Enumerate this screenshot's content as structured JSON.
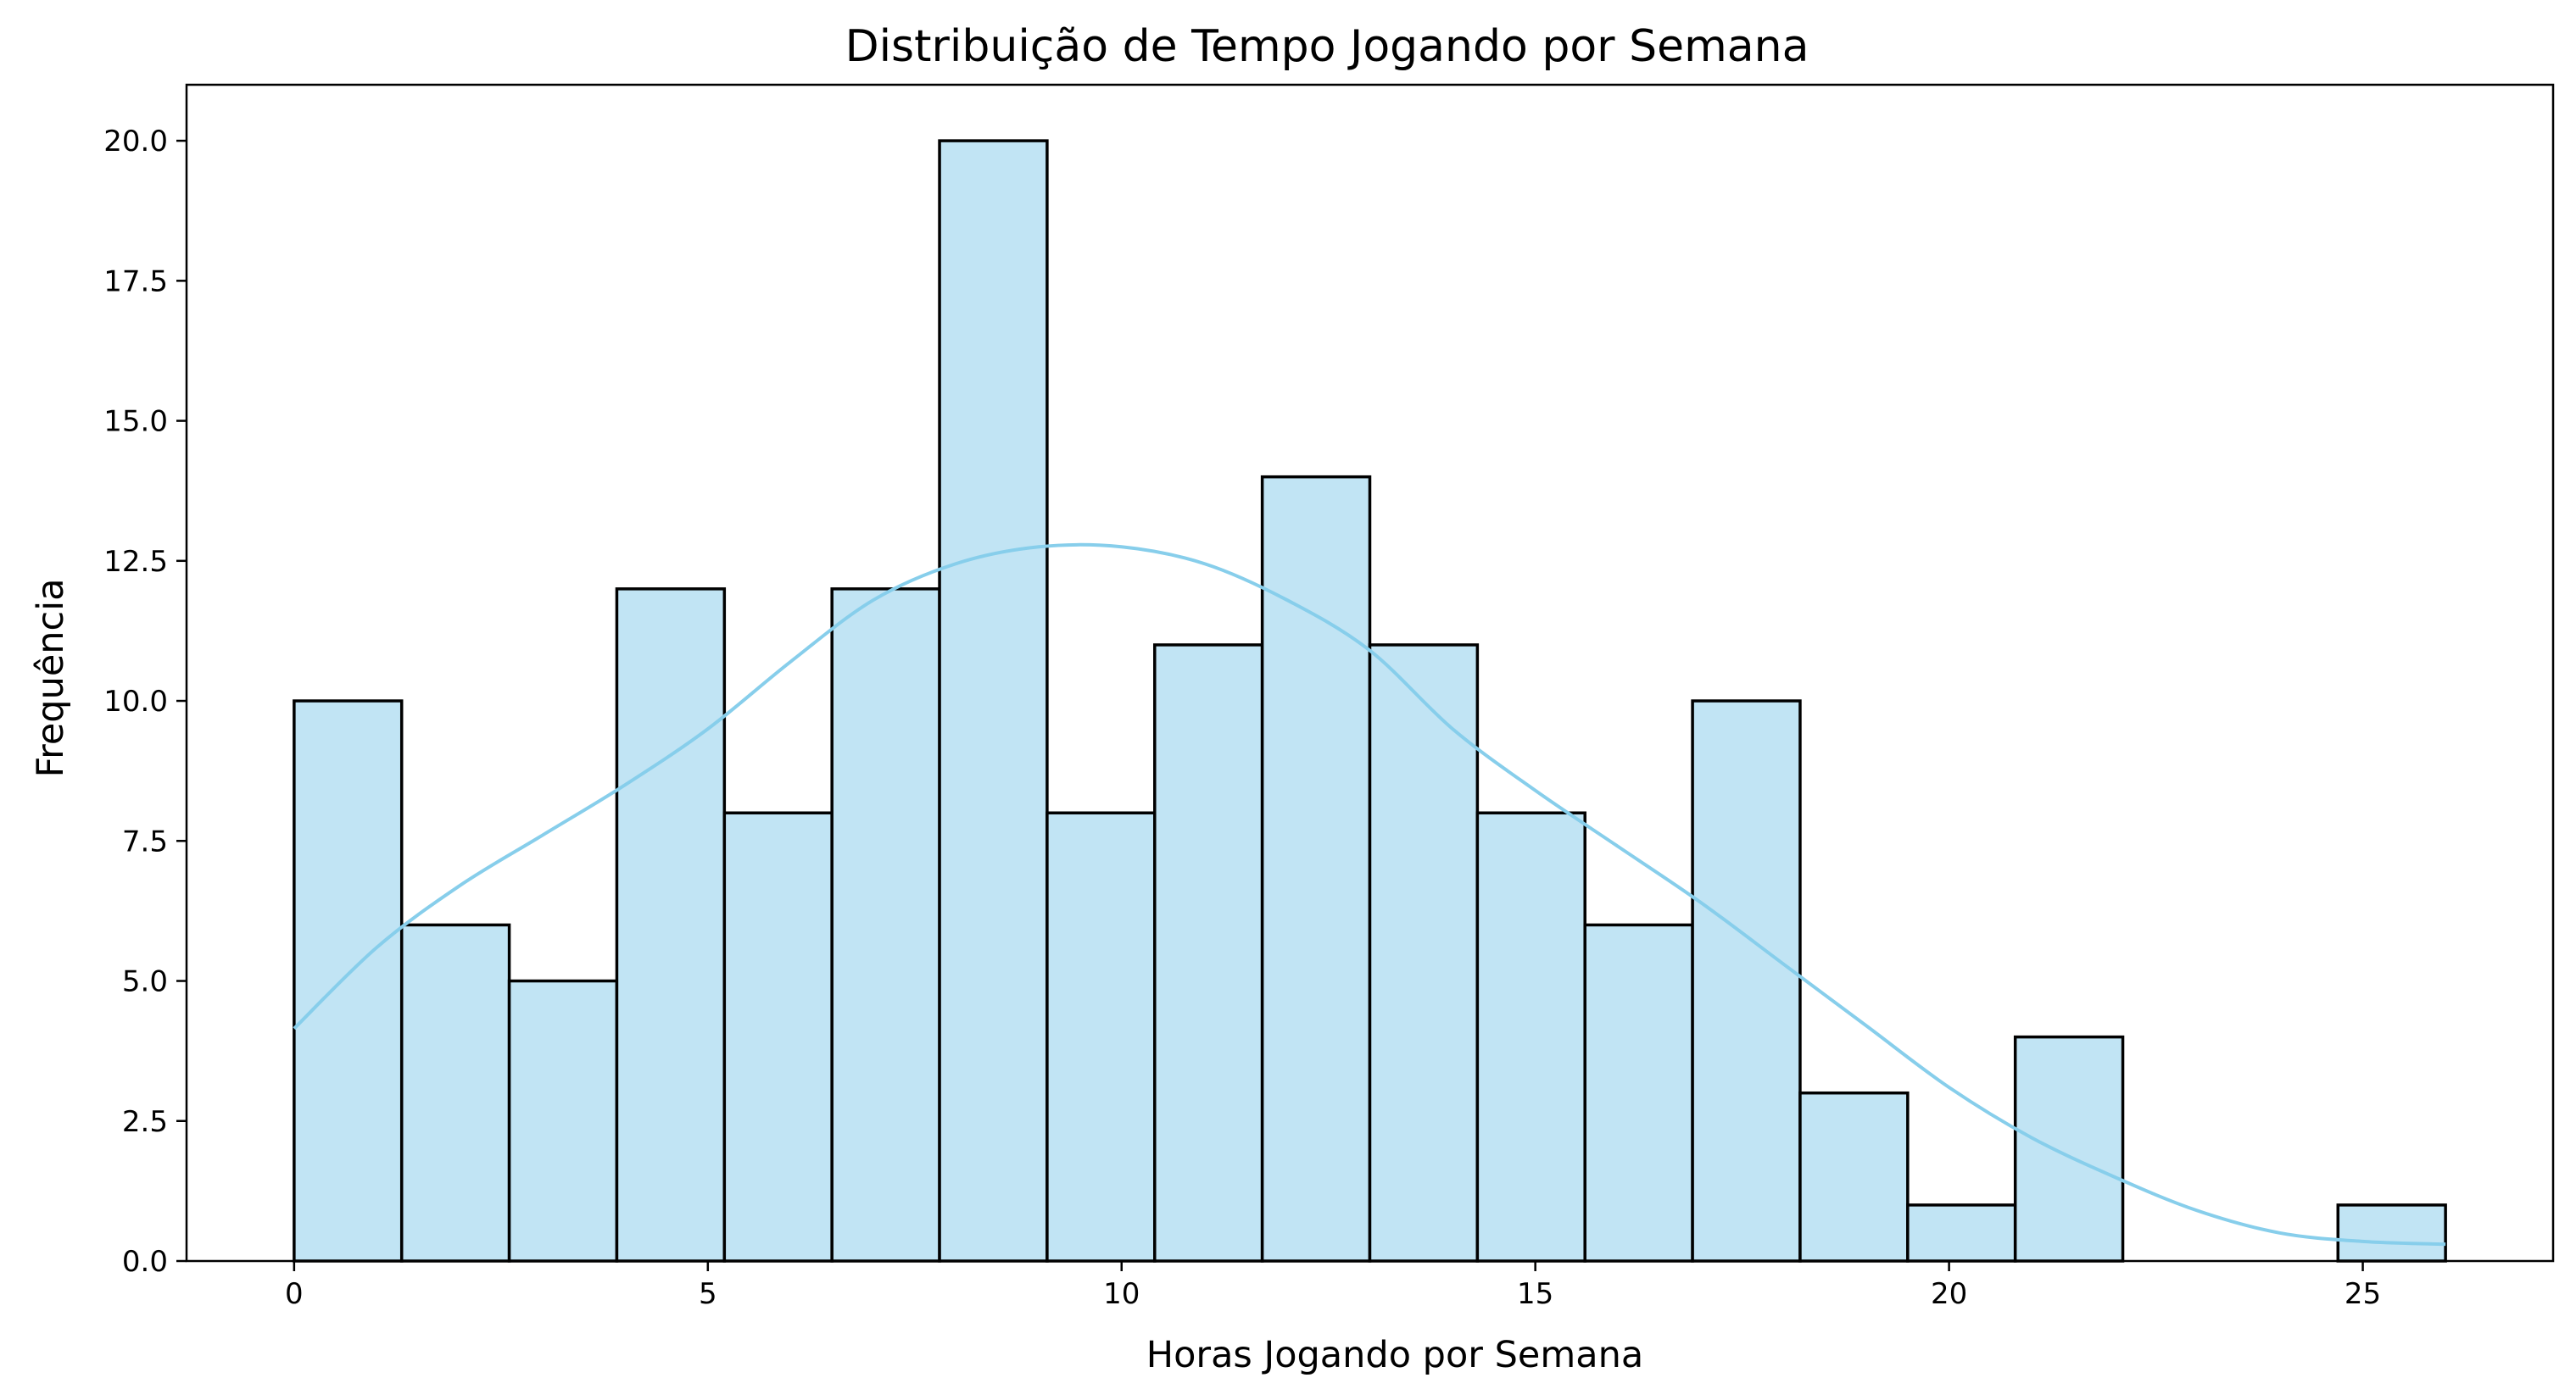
{
  "chart_data": {
    "type": "bar",
    "title": "Distribuição de Tempo Jogando por Semana",
    "xlabel": "Horas Jogando por Semana",
    "ylabel": "Frequência",
    "xlim": [
      -1.3,
      27.3
    ],
    "ylim": [
      0,
      21
    ],
    "xticks": [
      0,
      5,
      10,
      15,
      20,
      25
    ],
    "yticks": [
      0,
      2.5,
      5,
      7.5,
      10,
      12.5,
      15,
      17.5,
      20
    ],
    "xtick_labels": [
      "0",
      "5",
      "10",
      "15",
      "20",
      "25"
    ],
    "ytick_labels": [
      "0.0",
      "2.5",
      "5.0",
      "7.5",
      "10.0",
      "12.5",
      "15.0",
      "17.5",
      "20.0"
    ],
    "bin_edges": [
      0,
      1.3,
      2.6,
      3.9,
      5.2,
      6.5,
      7.8,
      9.1,
      10.4,
      11.7,
      13.0,
      14.3,
      15.6,
      16.9,
      18.2,
      19.5,
      20.8,
      22.1,
      23.4,
      24.7,
      26.0
    ],
    "values": [
      10,
      6,
      5,
      12,
      8,
      12,
      20,
      8,
      11,
      14,
      11,
      8,
      6,
      10,
      3,
      1,
      4,
      0,
      0,
      1
    ],
    "kde": {
      "x": [
        0,
        1,
        2,
        3,
        4,
        5,
        6,
        7,
        8,
        9,
        10,
        11,
        12,
        13,
        14,
        15,
        16,
        17,
        18,
        19,
        20,
        21,
        22,
        23,
        24,
        25,
        26
      ],
      "y": [
        4.15,
        5.6,
        6.7,
        7.6,
        8.5,
        9.5,
        10.7,
        11.8,
        12.45,
        12.75,
        12.75,
        12.45,
        11.8,
        10.9,
        9.5,
        8.4,
        7.4,
        6.4,
        5.3,
        4.2,
        3.1,
        2.2,
        1.5,
        0.9,
        0.5,
        0.35,
        0.3
      ]
    },
    "grid": false,
    "colors": {
      "bar_fill": "#c1e4f4",
      "bar_edge": "#000000",
      "kde_line": "#87ceeb"
    }
  }
}
